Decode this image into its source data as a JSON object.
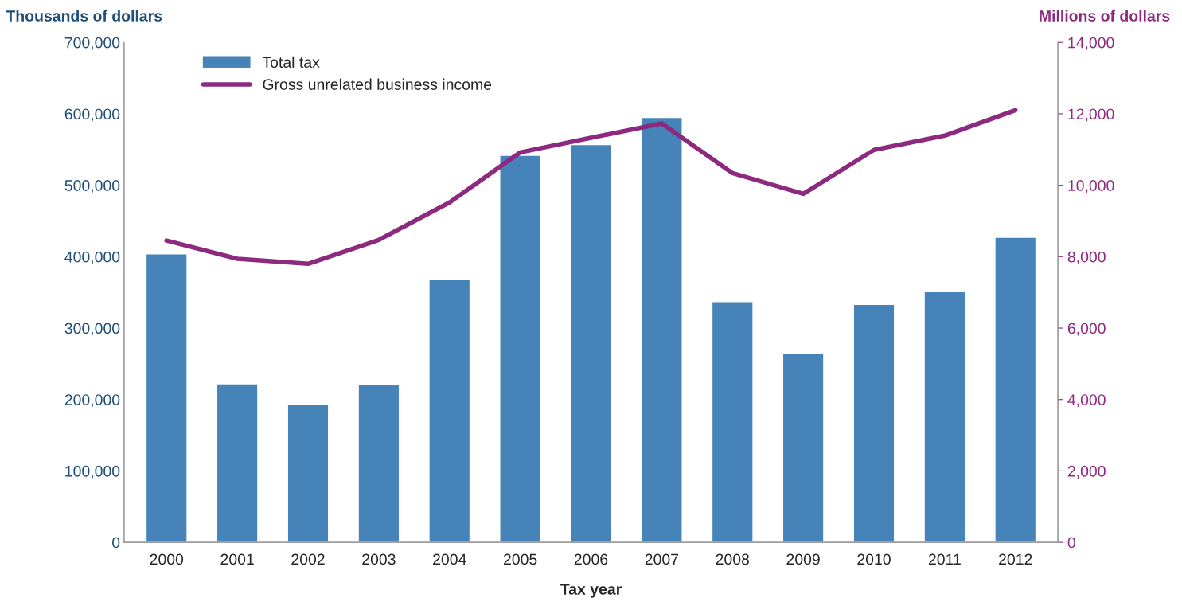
{
  "chart_data": {
    "type": "bar",
    "xlabel": "Tax year",
    "ylabel": "Thousands of dollars",
    "y2label": "Millions of dollars",
    "categories": [
      "2000",
      "2001",
      "2002",
      "2003",
      "2004",
      "2005",
      "2006",
      "2007",
      "2008",
      "2009",
      "2010",
      "2011",
      "2012"
    ],
    "series": [
      {
        "name": "Total tax",
        "color": "#4583b9",
        "values": [
          404000,
          222000,
          193000,
          221000,
          368000,
          542000,
          557000,
          595000,
          337000,
          264000,
          333000,
          351000,
          427000
        ]
      },
      {
        "name": "Gross unrelated business income",
        "type": "line",
        "axis": "y2",
        "color": "#8d2a80",
        "values": [
          8450,
          7940,
          7800,
          8470,
          9520,
          10920,
          11330,
          11730,
          10340,
          9760,
          10990,
          11390,
          12100
        ]
      }
    ],
    "ylim": [
      0,
      700000
    ],
    "yticks": [
      0,
      {
        "value": 100000,
        "label": "100,000"
      },
      {
        "value": 200000,
        "label": "200,000"
      },
      {
        "value": 300000,
        "label": "300,000"
      },
      {
        "value": 400000,
        "label": "400,000"
      },
      {
        "value": 500000,
        "label": "500,000"
      },
      {
        "value": 600000,
        "label": "600,000"
      },
      {
        "value": 700000,
        "label": "700,000"
      }
    ],
    "y2lim": [
      0,
      14000
    ],
    "y2ticks": [
      0,
      {
        "value": 2000,
        "label": "2,000"
      },
      {
        "value": 4000,
        "label": "4,000"
      },
      {
        "value": 6000,
        "label": "6,000"
      },
      {
        "value": 8000,
        "label": "8,000"
      },
      {
        "value": 10000,
        "label": "10,000"
      },
      {
        "value": 12000,
        "label": "12,000"
      },
      {
        "value": 14000,
        "label": "14,000"
      }
    ],
    "grid": false,
    "legend": "top left",
    "line_style": "solid",
    "marker": "none"
  }
}
